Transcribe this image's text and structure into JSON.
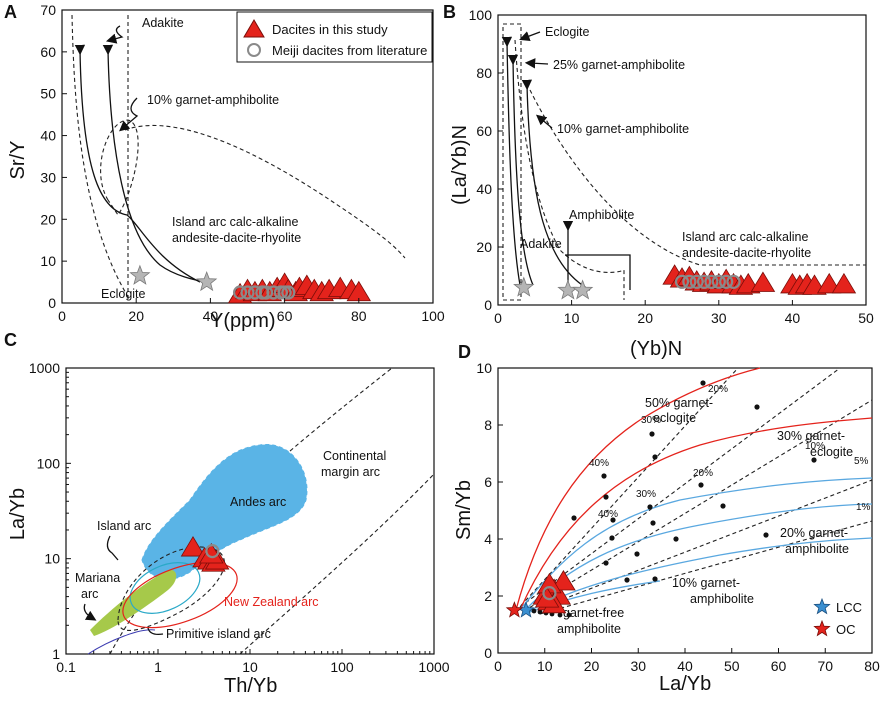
{
  "legend": {
    "dacites_study": "Dacites in this study",
    "meiji": "Meiji dacites from literature"
  },
  "colors": {
    "dacite": "#e4231c",
    "meiji_stroke": "#8a8a8a",
    "star_gray": "#b5b5b5",
    "andes": "#5ab4e6",
    "mariana": "#a6c94a",
    "nz": "#e4231c",
    "lcc": "#3a8fd0",
    "oc": "#e4231c"
  },
  "chart_data": [
    {
      "type": "scatter",
      "panel": "A",
      "xlabel": "Y(ppm)",
      "ylabel": "Sr/Y",
      "xlim": [
        0,
        100
      ],
      "ylim": [
        0,
        70
      ],
      "xticks": [
        0,
        20,
        40,
        60,
        80,
        100
      ],
      "yticks": [
        0,
        10,
        20,
        30,
        40,
        50,
        60,
        70
      ],
      "annotations": {
        "adakite": "Adakite",
        "garnet": "10% garnet-amphibolite",
        "arc1": "Island arc calc-alkaline",
        "arc2": "andesite-dacite-rhyolite",
        "eclogite": "Eclogite"
      },
      "dacites": [
        [
          48,
          2
        ],
        [
          50,
          3
        ],
        [
          52,
          2.5
        ],
        [
          54,
          3
        ],
        [
          56,
          2.5
        ],
        [
          58,
          3.5
        ],
        [
          60,
          4.5
        ],
        [
          61,
          3
        ],
        [
          63,
          2.5
        ],
        [
          64,
          3.5
        ],
        [
          66,
          4
        ],
        [
          68,
          3
        ],
        [
          70,
          2.5
        ],
        [
          72,
          3
        ],
        [
          75,
          3.5
        ],
        [
          78,
          3
        ],
        [
          80,
          2.5
        ]
      ],
      "meiji": [
        [
          48,
          2.5
        ],
        [
          50,
          2.5
        ],
        [
          52,
          2.5
        ],
        [
          54,
          2.5
        ],
        [
          55,
          2.5
        ],
        [
          57,
          2.5
        ],
        [
          59,
          2.5
        ],
        [
          60,
          2.5
        ],
        [
          61,
          2.5
        ]
      ],
      "stars": [
        [
          21,
          6.5
        ],
        [
          39,
          5
        ]
      ]
    },
    {
      "type": "scatter",
      "panel": "B",
      "xlabel": "(Yb)N",
      "ylabel": "(La/Yb)N",
      "xlim": [
        0,
        50
      ],
      "ylim": [
        0,
        100
      ],
      "xticks": [
        0,
        10,
        20,
        30,
        40,
        50
      ],
      "yticks": [
        0,
        20,
        40,
        60,
        80,
        100
      ],
      "annotations": {
        "eclogite": "Eclogite",
        "g25": "25% garnet-amphibolite",
        "g10": "10% garnet-amphibolite",
        "amph": "Amphibolite",
        "adakite": "Adakite",
        "arc1": "Island arc calc-alkaline",
        "arc2": "andesite-dacite-rhyolite"
      },
      "dacites": [
        [
          24,
          10
        ],
        [
          25,
          9
        ],
        [
          26,
          9.5
        ],
        [
          27,
          8
        ],
        [
          28,
          7.5
        ],
        [
          29,
          8
        ],
        [
          30,
          7
        ],
        [
          31,
          8.5
        ],
        [
          32,
          7
        ],
        [
          33,
          6.5
        ],
        [
          34,
          7
        ],
        [
          36,
          7.5
        ],
        [
          40,
          7
        ],
        [
          41,
          6.5
        ],
        [
          42,
          7
        ],
        [
          43,
          6.5
        ],
        [
          45,
          7
        ],
        [
          47,
          7
        ]
      ],
      "meiji": [
        [
          25,
          8
        ],
        [
          26,
          8
        ],
        [
          27,
          8
        ],
        [
          28,
          8
        ],
        [
          29,
          8
        ],
        [
          30,
          8
        ],
        [
          31,
          8
        ],
        [
          32,
          8
        ]
      ],
      "stars": [
        [
          3.5,
          6
        ],
        [
          9.5,
          5
        ],
        [
          11.5,
          5
        ]
      ]
    },
    {
      "type": "scatter",
      "panel": "C",
      "xlabel": "Th/Yb",
      "ylabel": "La/Yb",
      "xscale": "log",
      "yscale": "log",
      "xlim": [
        0.1,
        1000
      ],
      "ylim": [
        1,
        1000
      ],
      "xticks": [
        "0.1",
        "1",
        "10",
        "100",
        "1000"
      ],
      "yticks": [
        "1",
        "10",
        "100",
        "1000"
      ],
      "annotations": {
        "cont": "Continental",
        "cont2": "margin arc",
        "andes": "Andes arc",
        "island": "Island arc",
        "mariana": "Mariana",
        "mariana2": "arc",
        "nz": "New Zealand arc",
        "prim": "Primitive island arc"
      },
      "dacites": [
        [
          2.4,
          13
        ],
        [
          3.2,
          10
        ],
        [
          3.6,
          9.5
        ],
        [
          4.0,
          9
        ],
        [
          4.4,
          9.5
        ],
        [
          3.8,
          11
        ]
      ],
      "meiji": [
        [
          3.9,
          12
        ]
      ]
    },
    {
      "type": "scatter",
      "panel": "D",
      "xlabel": "La/Yb",
      "ylabel": "Sm/Yb",
      "xlim": [
        0,
        80
      ],
      "ylim": [
        0,
        10
      ],
      "xticks": [
        0,
        10,
        20,
        30,
        40,
        50,
        60,
        70,
        80
      ],
      "yticks": [
        0,
        2,
        4,
        6,
        8,
        10
      ],
      "annotations": {
        "g50": "50% garnet-",
        "g50b": "eclogite",
        "g30": "30% garnet-",
        "g30b": "eclogite",
        "g20": "20% garnet-",
        "g20b": "amphibolite",
        "g10": "10% garnet-",
        "g10b": "amphibolite",
        "gf": "garnet-free",
        "gfb": "amphibolite",
        "p20": "20%",
        "p30": "30%",
        "p40": "40%",
        "p10": "10%",
        "p5": "5%",
        "p1": "1%",
        "p20b": "20%",
        "p30b": "30%",
        "p40b": "40%"
      },
      "legend": {
        "lcc": "LCC",
        "oc": "OC"
      },
      "dacites": [
        [
          10,
          2.0
        ],
        [
          11,
          1.8
        ],
        [
          12,
          2.2
        ],
        [
          13,
          2.0
        ],
        [
          14,
          2.5
        ],
        [
          11,
          2.4
        ],
        [
          12,
          1.7
        ],
        [
          10.5,
          1.9
        ]
      ],
      "meiji": [
        [
          11,
          2.1
        ]
      ],
      "lcc": [
        6,
        1.5
      ],
      "oc": [
        3.5,
        1.5
      ]
    }
  ]
}
